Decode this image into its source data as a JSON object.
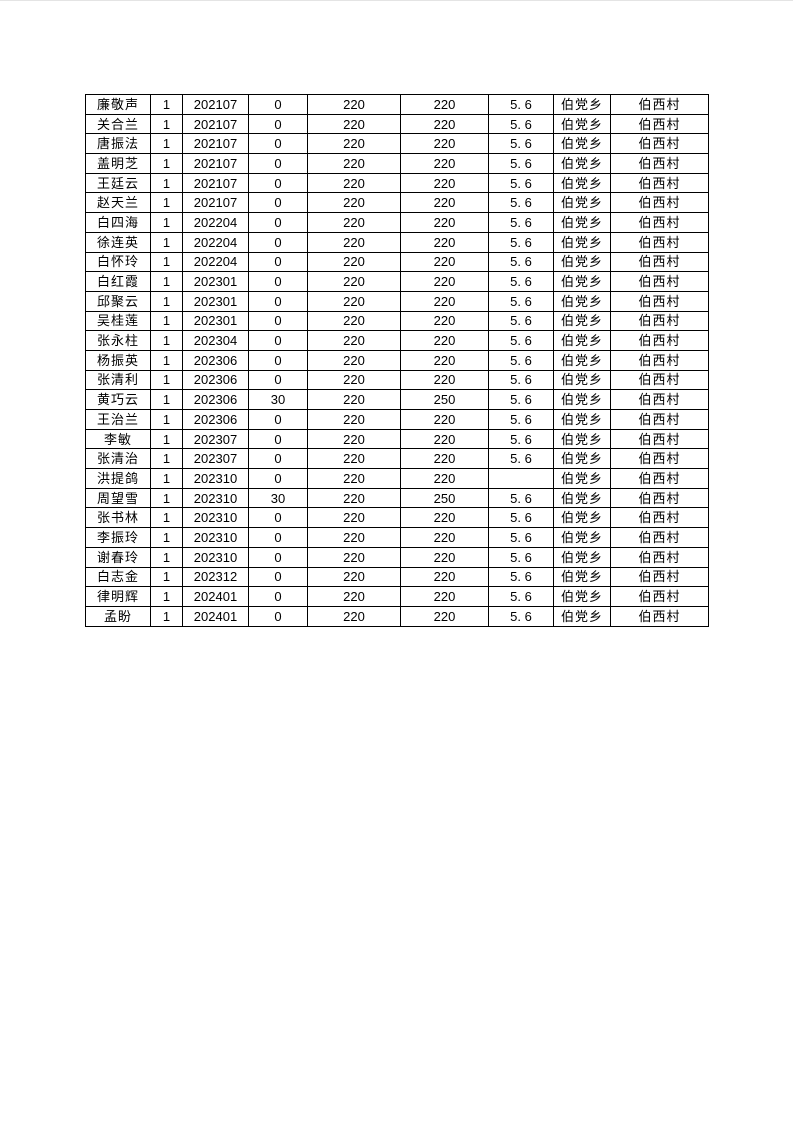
{
  "colors": {
    "page_background": "#ffffff",
    "table_border": "#000000",
    "text": "#000000"
  },
  "table": {
    "rows": [
      [
        "廉敬声",
        "1",
        "202107",
        "0",
        "220",
        "220",
        "5. 6",
        "伯党乡",
        "伯西村"
      ],
      [
        "关合兰",
        "1",
        "202107",
        "0",
        "220",
        "220",
        "5. 6",
        "伯党乡",
        "伯西村"
      ],
      [
        "唐振法",
        "1",
        "202107",
        "0",
        "220",
        "220",
        "5. 6",
        "伯党乡",
        "伯西村"
      ],
      [
        "盖明芝",
        "1",
        "202107",
        "0",
        "220",
        "220",
        "5. 6",
        "伯党乡",
        "伯西村"
      ],
      [
        "王廷云",
        "1",
        "202107",
        "0",
        "220",
        "220",
        "5. 6",
        "伯党乡",
        "伯西村"
      ],
      [
        "赵天兰",
        "1",
        "202107",
        "0",
        "220",
        "220",
        "5. 6",
        "伯党乡",
        "伯西村"
      ],
      [
        "白四海",
        "1",
        "202204",
        "0",
        "220",
        "220",
        "5. 6",
        "伯党乡",
        "伯西村"
      ],
      [
        "徐连英",
        "1",
        "202204",
        "0",
        "220",
        "220",
        "5. 6",
        "伯党乡",
        "伯西村"
      ],
      [
        "白怀玲",
        "1",
        "202204",
        "0",
        "220",
        "220",
        "5. 6",
        "伯党乡",
        "伯西村"
      ],
      [
        "白红霞",
        "1",
        "202301",
        "0",
        "220",
        "220",
        "5. 6",
        "伯党乡",
        "伯西村"
      ],
      [
        "邱聚云",
        "1",
        "202301",
        "0",
        "220",
        "220",
        "5. 6",
        "伯党乡",
        "伯西村"
      ],
      [
        "吴桂莲",
        "1",
        "202301",
        "0",
        "220",
        "220",
        "5. 6",
        "伯党乡",
        "伯西村"
      ],
      [
        "张永柱",
        "1",
        "202304",
        "0",
        "220",
        "220",
        "5. 6",
        "伯党乡",
        "伯西村"
      ],
      [
        "杨振英",
        "1",
        "202306",
        "0",
        "220",
        "220",
        "5. 6",
        "伯党乡",
        "伯西村"
      ],
      [
        "张清利",
        "1",
        "202306",
        "0",
        "220",
        "220",
        "5. 6",
        "伯党乡",
        "伯西村"
      ],
      [
        "黄巧云",
        "1",
        "202306",
        "30",
        "220",
        "250",
        "5. 6",
        "伯党乡",
        "伯西村"
      ],
      [
        "王治兰",
        "1",
        "202306",
        "0",
        "220",
        "220",
        "5. 6",
        "伯党乡",
        "伯西村"
      ],
      [
        "李敏",
        "1",
        "202307",
        "0",
        "220",
        "220",
        "5. 6",
        "伯党乡",
        "伯西村"
      ],
      [
        "张清治",
        "1",
        "202307",
        "0",
        "220",
        "220",
        "5. 6",
        "伯党乡",
        "伯西村"
      ],
      [
        "洪提鸽",
        "1",
        "202310",
        "0",
        "220",
        "220",
        "",
        "伯党乡",
        "伯西村"
      ],
      [
        "周望雪",
        "1",
        "202310",
        "30",
        "220",
        "250",
        "5. 6",
        "伯党乡",
        "伯西村"
      ],
      [
        "张书林",
        "1",
        "202310",
        "0",
        "220",
        "220",
        "5. 6",
        "伯党乡",
        "伯西村"
      ],
      [
        "李振玲",
        "1",
        "202310",
        "0",
        "220",
        "220",
        "5. 6",
        "伯党乡",
        "伯西村"
      ],
      [
        "谢春玲",
        "1",
        "202310",
        "0",
        "220",
        "220",
        "5. 6",
        "伯党乡",
        "伯西村"
      ],
      [
        "白志金",
        "1",
        "202312",
        "0",
        "220",
        "220",
        "5. 6",
        "伯党乡",
        "伯西村"
      ],
      [
        "律明辉",
        "1",
        "202401",
        "0",
        "220",
        "220",
        "5. 6",
        "伯党乡",
        "伯西村"
      ],
      [
        "孟盼",
        "1",
        "202401",
        "0",
        "220",
        "220",
        "5. 6",
        "伯党乡",
        "伯西村"
      ]
    ]
  }
}
